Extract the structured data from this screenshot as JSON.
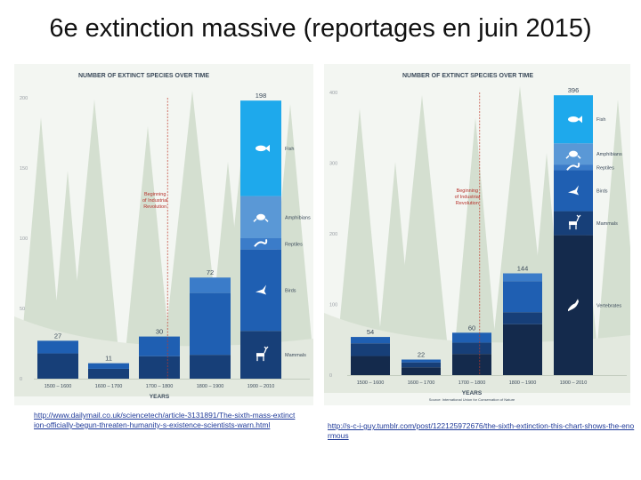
{
  "slide": {
    "title": "6e extinction massive (reportages en juin 2015)",
    "links": {
      "left": "http://www.dailymail.co.uk/sciencetech/article-3131891/The-sixth-mass-extinction-officially-begun-threaten-humanity-s-existence-scientists-warn.html",
      "right": "http://s-c-i-guy.tumblr.com/post/122125972676/the-sixth-extinction-this-chart-shows-the-enormous"
    }
  },
  "colors": {
    "vertebrates": "#142a4c",
    "mammals": "#173f78",
    "birds": "#1f5fb2",
    "reptiles": "#3b7cc9",
    "amphibians": "#5a98d6",
    "fish": "#1ea9ec",
    "background": "#f3f6f2",
    "tree": "#cfdccb",
    "hill": "#e3e9df",
    "industrial_line": "#c0392b",
    "industrial_text": "#b7312a",
    "axis_text": "#3b4a5a",
    "tick_text": "#9aa0a6"
  },
  "icons": {
    "fish": "fish-icon",
    "amphibians": "frog-icon",
    "reptiles": "lizard-icon",
    "birds": "bird-icon",
    "mammals": "deer-icon",
    "vertebrates": "kangaroo-icon"
  },
  "chart_data": [
    {
      "type": "bar",
      "stacked": true,
      "title": "NUMBER OF EXTINCT SPECIES OVER TIME",
      "xlabel": "YEARS",
      "ylabel": "",
      "ylim": [
        0,
        200
      ],
      "yticks": [
        "0",
        "50",
        "100",
        "150",
        "200"
      ],
      "grid": false,
      "categories": [
        "1500 – 1600",
        "1600 – 1700",
        "1700 – 1800",
        "1800 – 1900",
        "1900 – 2010"
      ],
      "totals": [
        "27",
        "11",
        "30",
        "72",
        "198"
      ],
      "series": [
        {
          "name": "Mammals",
          "key": "mammals",
          "values": [
            18,
            7,
            16,
            17,
            34
          ]
        },
        {
          "name": "Birds",
          "key": "birds",
          "values": [
            9,
            4,
            14,
            44,
            58
          ]
        },
        {
          "name": "Reptiles",
          "key": "reptiles",
          "values": [
            0,
            0,
            0,
            11,
            8
          ]
        },
        {
          "name": "Amphibians",
          "key": "amphibians",
          "values": [
            0,
            0,
            0,
            0,
            30
          ]
        },
        {
          "name": "Fish",
          "key": "fish",
          "values": [
            0,
            0,
            0,
            0,
            68
          ]
        }
      ],
      "annotation": {
        "text": [
          "Beginning",
          "of Industrial",
          "Revolution"
        ],
        "x": 1760
      },
      "legend": "right"
    },
    {
      "type": "bar",
      "stacked": true,
      "title": "NUMBER OF EXTINCT SPECIES OVER TIME",
      "xlabel": "YEARS",
      "ylabel": "",
      "source": "Source: International Union for Conservation of Nature",
      "ylim": [
        0,
        400
      ],
      "yticks": [
        "0",
        "100",
        "200",
        "300",
        "400"
      ],
      "grid": false,
      "categories": [
        "1500 – 1600",
        "1600 – 1700",
        "1700 – 1800",
        "1800 – 1900",
        "1900 – 2010"
      ],
      "totals": [
        "54",
        "22",
        "60",
        "144",
        "396"
      ],
      "series": [
        {
          "name": "Vertebrates",
          "key": "vertebrates",
          "values": [
            27,
            11,
            30,
            72,
            198
          ]
        },
        {
          "name": "Mammals",
          "key": "mammals",
          "values": [
            18,
            7,
            16,
            17,
            34
          ]
        },
        {
          "name": "Birds",
          "key": "birds",
          "values": [
            9,
            4,
            14,
            44,
            58
          ]
        },
        {
          "name": "Reptiles",
          "key": "reptiles",
          "values": [
            0,
            0,
            0,
            11,
            8
          ]
        },
        {
          "name": "Amphibians",
          "key": "amphibians",
          "values": [
            0,
            0,
            0,
            0,
            30
          ]
        },
        {
          "name": "Fish",
          "key": "fish",
          "values": [
            0,
            0,
            0,
            0,
            68
          ]
        }
      ],
      "annotation": {
        "text": [
          "Beginning",
          "of Industrial",
          "Revolution"
        ],
        "x": 1760
      },
      "legend": "right"
    }
  ]
}
